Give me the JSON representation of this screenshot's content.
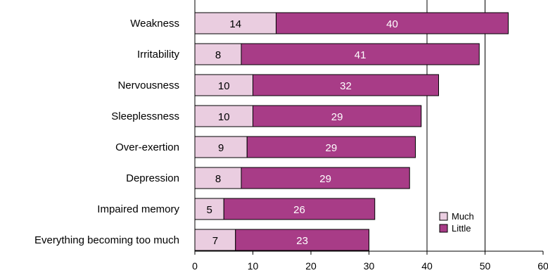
{
  "chart_data": {
    "type": "bar",
    "orientation": "horizontal",
    "stacked": true,
    "categories": [
      "Weakness",
      "Irritability",
      "Nervousness",
      "Sleeplessness",
      "Over-exertion",
      "Depression",
      "Impaired memory",
      "Everything becoming too much"
    ],
    "series": [
      {
        "name": "Much",
        "values": [
          14,
          8,
          10,
          10,
          9,
          8,
          5,
          7
        ],
        "color": "#eacde0",
        "label_color": "#000000"
      },
      {
        "name": "Little",
        "values": [
          40,
          41,
          32,
          29,
          29,
          29,
          26,
          23
        ],
        "color": "#a83c87",
        "label_color": "#ffffff"
      }
    ],
    "xlim": [
      0,
      60
    ],
    "xticks": [
      "0",
      "10",
      "20",
      "30",
      "40",
      "50",
      "60"
    ],
    "gridlines_at": [
      40,
      50
    ],
    "legend_position": "bottom-right"
  }
}
